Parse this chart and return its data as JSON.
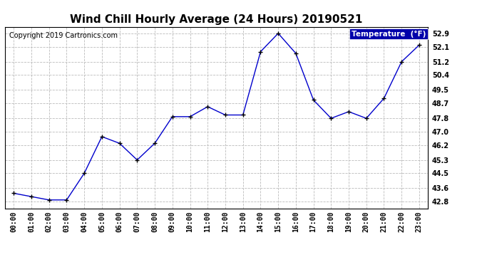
{
  "title": "Wind Chill Hourly Average (24 Hours) 20190521",
  "copyright": "Copyright 2019 Cartronics.com",
  "legend_label": "Temperature  (°F)",
  "x_labels": [
    "00:00",
    "01:00",
    "02:00",
    "03:00",
    "04:00",
    "05:00",
    "06:00",
    "07:00",
    "08:00",
    "09:00",
    "10:00",
    "11:00",
    "12:00",
    "13:00",
    "14:00",
    "15:00",
    "16:00",
    "17:00",
    "18:00",
    "19:00",
    "20:00",
    "21:00",
    "22:00",
    "23:00"
  ],
  "y_values": [
    43.3,
    43.1,
    42.9,
    42.9,
    44.5,
    46.7,
    46.3,
    45.3,
    46.3,
    47.9,
    47.9,
    48.5,
    48.0,
    48.0,
    51.8,
    52.9,
    51.7,
    48.9,
    47.8,
    48.2,
    47.8,
    49.0,
    51.2,
    52.2
  ],
  "y_ticks": [
    42.8,
    43.6,
    44.5,
    45.3,
    46.2,
    47.0,
    47.8,
    48.7,
    49.5,
    50.4,
    51.2,
    52.1,
    52.9
  ],
  "ylim_min": 42.4,
  "ylim_max": 53.3,
  "line_color": "#0000cc",
  "marker_color": "#000000",
  "grid_color": "#bbbbbb",
  "bg_color": "#ffffff",
  "plot_bg_color": "#ffffff",
  "title_fontsize": 11,
  "copyright_fontsize": 7,
  "tick_fontsize": 7,
  "legend_bg": "#0000aa",
  "legend_text_color": "#ffffff"
}
